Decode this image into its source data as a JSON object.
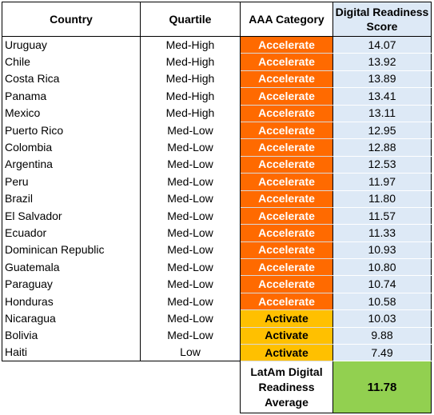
{
  "table": {
    "headers": {
      "country": "Country",
      "quartile": "Quartile",
      "category": "AAA Category",
      "score_line1": "Digital Readiness",
      "score_line2": "Score"
    },
    "rows": [
      {
        "country": "Uruguay",
        "quartile": "Med-High",
        "category": "Accelerate",
        "score": "14.07"
      },
      {
        "country": "Chile",
        "quartile": "Med-High",
        "category": "Accelerate",
        "score": "13.92"
      },
      {
        "country": "Costa Rica",
        "quartile": "Med-High",
        "category": "Accelerate",
        "score": "13.89"
      },
      {
        "country": "Panama",
        "quartile": "Med-High",
        "category": "Accelerate",
        "score": "13.41"
      },
      {
        "country": "Mexico",
        "quartile": "Med-High",
        "category": "Accelerate",
        "score": "13.11"
      },
      {
        "country": "Puerto Rico",
        "quartile": "Med-Low",
        "category": "Accelerate",
        "score": "12.95"
      },
      {
        "country": "Colombia",
        "quartile": "Med-Low",
        "category": "Accelerate",
        "score": "12.88"
      },
      {
        "country": "Argentina",
        "quartile": "Med-Low",
        "category": "Accelerate",
        "score": "12.53"
      },
      {
        "country": "Peru",
        "quartile": "Med-Low",
        "category": "Accelerate",
        "score": "11.97"
      },
      {
        "country": "Brazil",
        "quartile": "Med-Low",
        "category": "Accelerate",
        "score": "11.80"
      },
      {
        "country": "El Salvador",
        "quartile": "Med-Low",
        "category": "Accelerate",
        "score": "11.57"
      },
      {
        "country": "Ecuador",
        "quartile": "Med-Low",
        "category": "Accelerate",
        "score": "11.33"
      },
      {
        "country": "Dominican Republic",
        "quartile": "Med-Low",
        "category": "Accelerate",
        "score": "10.93"
      },
      {
        "country": "Guatemala",
        "quartile": "Med-Low",
        "category": "Accelerate",
        "score": "10.80"
      },
      {
        "country": "Paraguay",
        "quartile": "Med-Low",
        "category": "Accelerate",
        "score": "10.74"
      },
      {
        "country": "Honduras",
        "quartile": "Med-Low",
        "category": "Accelerate",
        "score": "10.58"
      },
      {
        "country": "Nicaragua",
        "quartile": "Med-Low",
        "category": "Activate",
        "score": "10.03"
      },
      {
        "country": "Bolivia",
        "quartile": "Med-Low",
        "category": "Activate",
        "score": "9.88"
      },
      {
        "country": "Haiti",
        "quartile": "Low",
        "category": "Activate",
        "score": "7.49"
      }
    ],
    "average": {
      "label_line1": "LatAm Digital",
      "label_line2": "Readiness",
      "label_line3": "Average",
      "value": "11.78"
    }
  },
  "colors": {
    "accelerate": "#ff6a00",
    "activate": "#ffc000",
    "score_bg": "#dde9f6",
    "average_bg": "#92d050"
  }
}
